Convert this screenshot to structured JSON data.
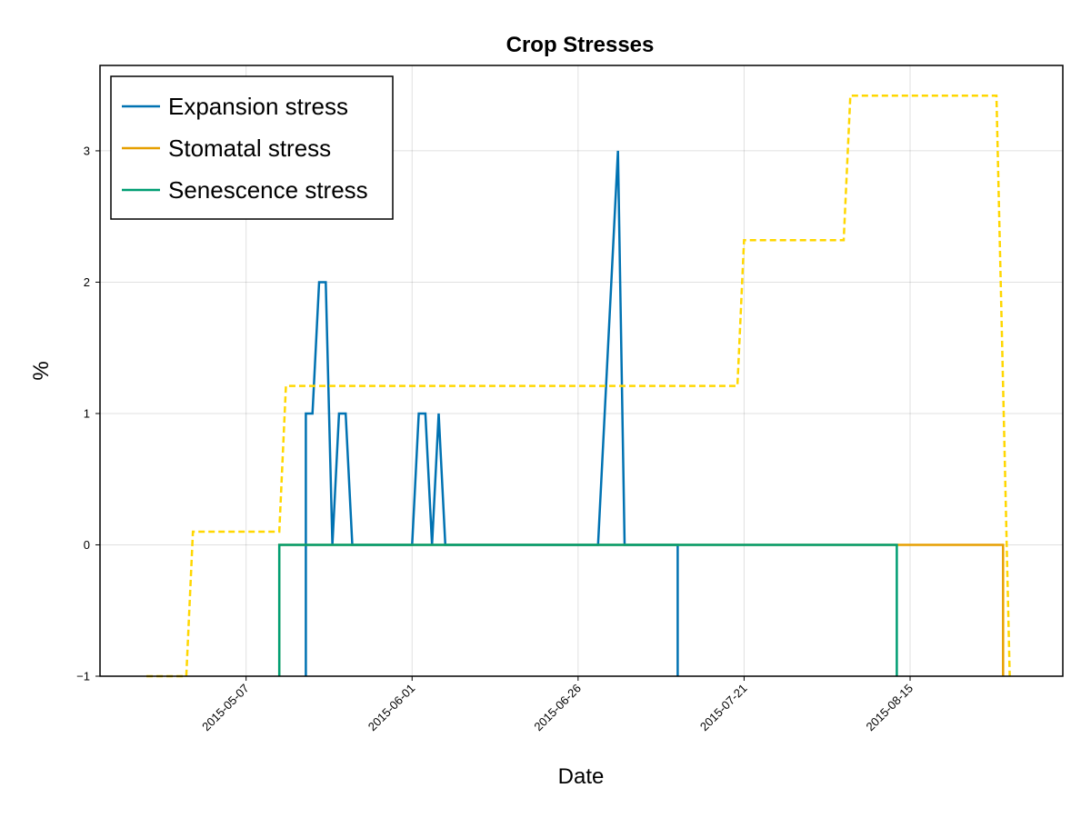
{
  "chart_data": {
    "type": "line",
    "title": "Crop Stresses",
    "xlabel": "Date",
    "ylabel": "%",
    "x_ticks": [
      "2015-05-07",
      "2015-06-01",
      "2015-06-26",
      "2015-07-21",
      "2015-08-15"
    ],
    "y_ticks": [
      "−1",
      "0",
      "1",
      "2",
      "3"
    ],
    "xlim": [
      "2015-04-15",
      "2015-09-07"
    ],
    "ylim": [
      -1,
      3.65
    ],
    "grid": true,
    "legend_position": "top-left",
    "series": [
      {
        "name": "Expansion stress",
        "color": "#0072b2",
        "style": "solid",
        "points": [
          [
            "2015-05-16",
            -1
          ],
          [
            "2015-05-16",
            1
          ],
          [
            "2015-05-17",
            1
          ],
          [
            "2015-05-18",
            2
          ],
          [
            "2015-05-19",
            2
          ],
          [
            "2015-05-20",
            0
          ],
          [
            "2015-05-21",
            1
          ],
          [
            "2015-05-22",
            1
          ],
          [
            "2015-05-23",
            0
          ],
          [
            "2015-06-01",
            0
          ],
          [
            "2015-06-02",
            1
          ],
          [
            "2015-06-03",
            1
          ],
          [
            "2015-06-04",
            0
          ],
          [
            "2015-06-05",
            1
          ],
          [
            "2015-06-06",
            0
          ],
          [
            "2015-06-29",
            0
          ],
          [
            "2015-07-02",
            3
          ],
          [
            "2015-07-03",
            0
          ],
          [
            "2015-07-11",
            0
          ],
          [
            "2015-07-11",
            -1
          ]
        ]
      },
      {
        "name": "Stomatal stress",
        "color": "#e69f00",
        "style": "solid",
        "points": [
          [
            "2015-05-12",
            -1
          ],
          [
            "2015-05-12",
            0
          ],
          [
            "2015-08-29",
            0
          ],
          [
            "2015-08-29",
            -1
          ]
        ]
      },
      {
        "name": "Senescence stress",
        "color": "#009e73",
        "style": "solid",
        "points": [
          [
            "2015-05-12",
            -1
          ],
          [
            "2015-05-12",
            0
          ],
          [
            "2015-08-13",
            0
          ],
          [
            "2015-08-13",
            -1
          ]
        ]
      },
      {
        "color": "#ffd700",
        "style": "dashed",
        "points": [
          [
            "2015-04-22",
            -1
          ],
          [
            "2015-04-28",
            -1
          ],
          [
            "2015-04-29",
            0.1
          ],
          [
            "2015-05-12",
            0.1
          ],
          [
            "2015-05-13",
            1.21
          ],
          [
            "2015-07-20",
            1.21
          ],
          [
            "2015-07-21",
            2.32
          ],
          [
            "2015-08-05",
            2.32
          ],
          [
            "2015-08-06",
            3.42
          ],
          [
            "2015-08-28",
            3.42
          ],
          [
            "2015-08-30",
            -1
          ]
        ]
      }
    ]
  }
}
